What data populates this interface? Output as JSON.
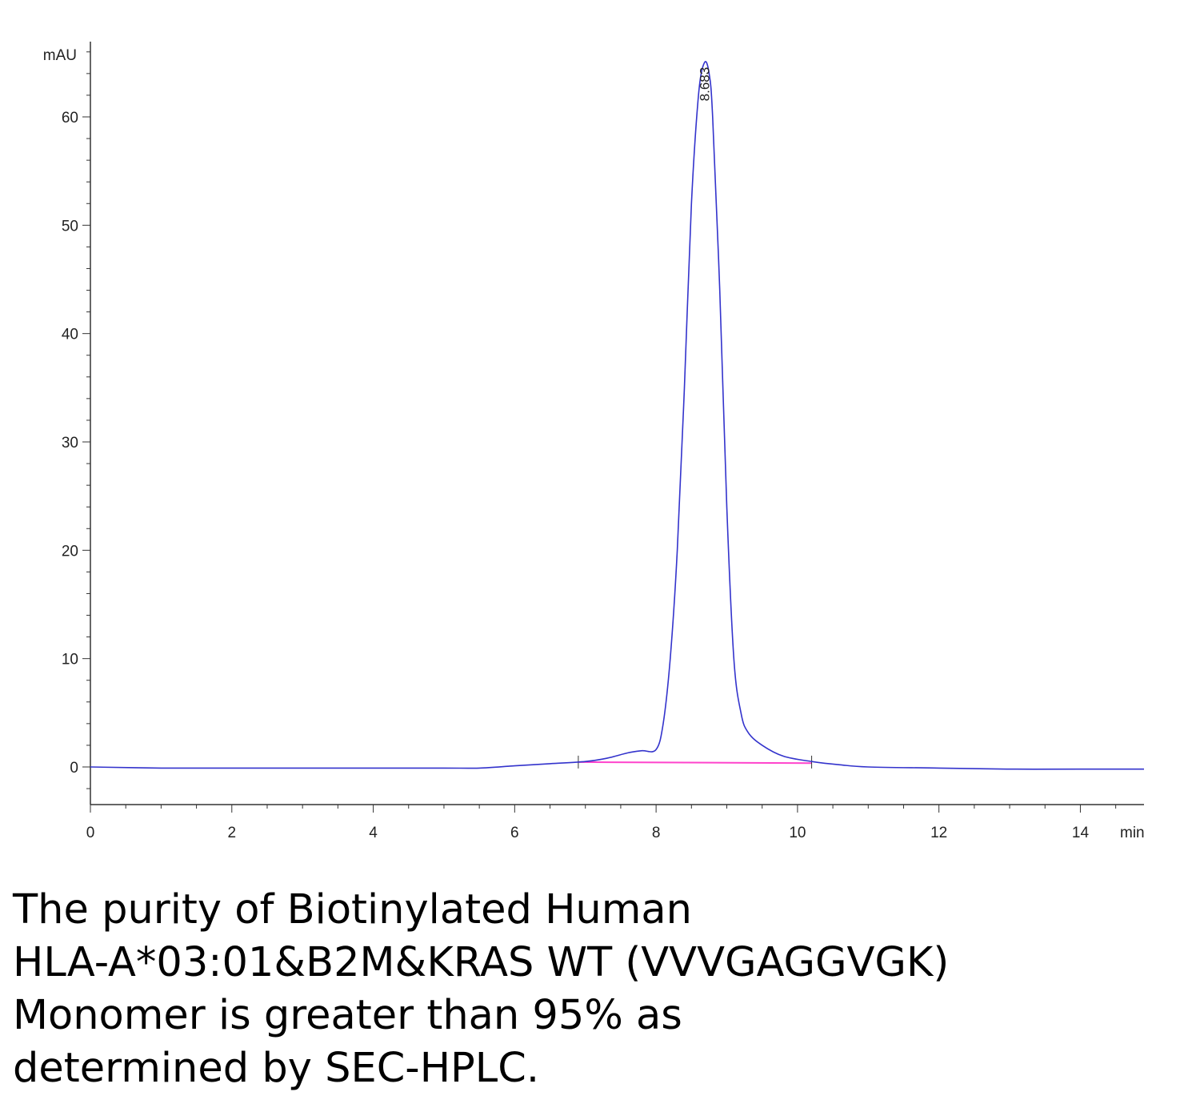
{
  "chart_data": {
    "type": "line",
    "title": "",
    "xlabel": "",
    "ylabel": "",
    "x_unit": "min",
    "y_unit": "mAU",
    "xlim": [
      0,
      14.9
    ],
    "ylim": [
      -3.5,
      67
    ],
    "x_ticks": [
      "0",
      "2",
      "4",
      "6",
      "8",
      "10",
      "12",
      "14"
    ],
    "y_ticks": [
      "0",
      "10",
      "20",
      "30",
      "40",
      "50",
      "60"
    ],
    "grid": false,
    "legend": "none",
    "series": [
      {
        "color": "#3333cc",
        "x": [
          0,
          1,
          2,
          3,
          4,
          5,
          5.5,
          6,
          6.5,
          7,
          7.3,
          7.6,
          7.8,
          8.0,
          8.1,
          8.2,
          8.3,
          8.4,
          8.5,
          8.6,
          8.683,
          8.75,
          8.8,
          8.9,
          9.0,
          9.1,
          9.2,
          9.3,
          9.5,
          9.8,
          10.2,
          10.6,
          11,
          12,
          13,
          14,
          14.9
        ],
        "y": [
          0,
          -0.1,
          -0.1,
          -0.1,
          -0.1,
          -0.1,
          -0.1,
          0.1,
          0.3,
          0.5,
          0.8,
          1.3,
          1.5,
          1.6,
          4,
          10,
          20,
          35,
          52,
          62,
          65,
          64,
          60,
          44,
          24,
          10,
          5,
          3.2,
          2.0,
          1.0,
          0.5,
          0.2,
          0,
          -0.1,
          -0.2,
          -0.2,
          -0.2
        ]
      }
    ],
    "baseline": {
      "color": "#ff44cc",
      "x": [
        6.9,
        10.2
      ],
      "y": [
        0.45,
        0.35
      ]
    },
    "integration_marks_x": [
      6.9,
      10.2
    ],
    "annotations": [
      {
        "text": "8.683",
        "x": 8.683,
        "y": 65
      }
    ]
  },
  "caption": {
    "lines": [
      "The purity of Biotinylated Human",
      "HLA-A*03:01&B2M&KRAS WT (VVVGAGGVGK)",
      "Monomer is greater than 95% as",
      "determined by SEC-HPLC."
    ]
  }
}
